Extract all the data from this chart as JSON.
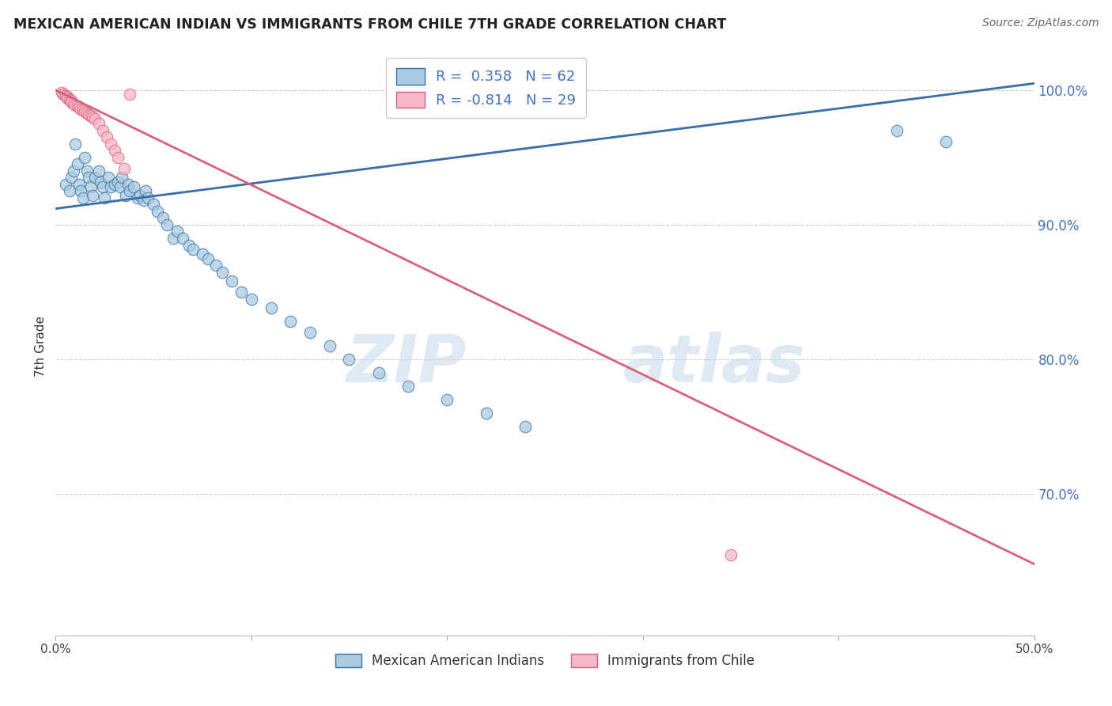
{
  "title": "MEXICAN AMERICAN INDIAN VS IMMIGRANTS FROM CHILE 7TH GRADE CORRELATION CHART",
  "source": "Source: ZipAtlas.com",
  "ylabel": "7th Grade",
  "ytick_labels": [
    "100.0%",
    "90.0%",
    "80.0%",
    "70.0%"
  ],
  "ytick_values": [
    1.0,
    0.9,
    0.8,
    0.7
  ],
  "xlim": [
    0.0,
    0.5
  ],
  "ylim": [
    0.595,
    1.025
  ],
  "r_blue": 0.358,
  "n_blue": 62,
  "r_pink": -0.814,
  "n_pink": 29,
  "blue_color": "#a8cce0",
  "pink_color": "#f5b8c8",
  "blue_line_color": "#3a6ea8",
  "pink_line_color": "#d9607a",
  "watermark_zip": "ZIP",
  "watermark_atlas": "atlas",
  "legend_label_blue": "Mexican American Indians",
  "legend_label_pink": "Immigrants from Chile",
  "blue_scatter_x": [
    0.005,
    0.007,
    0.008,
    0.009,
    0.01,
    0.011,
    0.012,
    0.013,
    0.014,
    0.015,
    0.016,
    0.017,
    0.018,
    0.019,
    0.02,
    0.022,
    0.023,
    0.024,
    0.025,
    0.027,
    0.028,
    0.03,
    0.032,
    0.033,
    0.034,
    0.036,
    0.037,
    0.038,
    0.04,
    0.042,
    0.043,
    0.045,
    0.046,
    0.047,
    0.05,
    0.052,
    0.055,
    0.057,
    0.06,
    0.062,
    0.065,
    0.068,
    0.07,
    0.075,
    0.078,
    0.082,
    0.085,
    0.09,
    0.095,
    0.1,
    0.11,
    0.12,
    0.13,
    0.14,
    0.15,
    0.165,
    0.18,
    0.2,
    0.22,
    0.24,
    0.43,
    0.455
  ],
  "blue_scatter_y": [
    0.93,
    0.925,
    0.935,
    0.94,
    0.96,
    0.945,
    0.93,
    0.925,
    0.92,
    0.95,
    0.94,
    0.935,
    0.928,
    0.922,
    0.935,
    0.94,
    0.932,
    0.928,
    0.92,
    0.935,
    0.928,
    0.93,
    0.932,
    0.928,
    0.935,
    0.922,
    0.93,
    0.925,
    0.928,
    0.92,
    0.922,
    0.918,
    0.925,
    0.92,
    0.915,
    0.91,
    0.905,
    0.9,
    0.89,
    0.895,
    0.89,
    0.885,
    0.882,
    0.878,
    0.875,
    0.87,
    0.865,
    0.858,
    0.85,
    0.845,
    0.838,
    0.828,
    0.82,
    0.81,
    0.8,
    0.79,
    0.78,
    0.77,
    0.76,
    0.75,
    0.97,
    0.962
  ],
  "pink_scatter_x": [
    0.003,
    0.004,
    0.005,
    0.006,
    0.006,
    0.007,
    0.008,
    0.008,
    0.009,
    0.01,
    0.011,
    0.012,
    0.013,
    0.014,
    0.015,
    0.016,
    0.017,
    0.018,
    0.019,
    0.02,
    0.022,
    0.024,
    0.026,
    0.028,
    0.03,
    0.032,
    0.035,
    0.345,
    0.038
  ],
  "pink_scatter_y": [
    0.998,
    0.997,
    0.996,
    0.995,
    0.994,
    0.993,
    0.992,
    0.991,
    0.99,
    0.989,
    0.988,
    0.987,
    0.986,
    0.985,
    0.984,
    0.983,
    0.982,
    0.981,
    0.98,
    0.979,
    0.975,
    0.97,
    0.965,
    0.96,
    0.955,
    0.95,
    0.942,
    0.655,
    0.997
  ],
  "blue_line_x0": 0.0,
  "blue_line_x1": 0.5,
  "blue_line_y0": 0.912,
  "blue_line_y1": 1.005,
  "pink_line_x0": 0.0,
  "pink_line_x1": 0.5,
  "pink_line_y0": 1.0,
  "pink_line_y1": 0.648
}
